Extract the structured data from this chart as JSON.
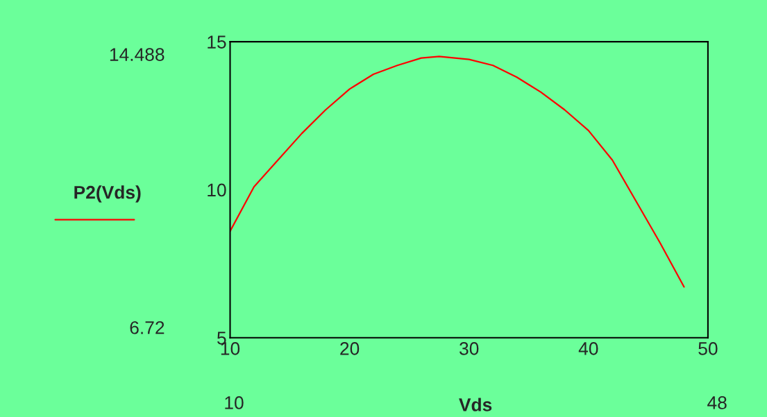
{
  "chart_data": {
    "type": "line",
    "xlabel": "Vds",
    "x": [
      10,
      12,
      14,
      16,
      18,
      20,
      22,
      24,
      26,
      27.5,
      30,
      32,
      34,
      36,
      38,
      40,
      42,
      44,
      46,
      48
    ],
    "series": [
      {
        "name": "P2(Vds)",
        "color": "#ff0000",
        "values": [
          8.6,
          10.1,
          11.0,
          11.9,
          12.7,
          13.4,
          13.9,
          14.2,
          14.45,
          14.5,
          14.4,
          14.2,
          13.8,
          13.3,
          12.7,
          12.0,
          11.0,
          9.6,
          8.2,
          6.72
        ]
      }
    ],
    "xlim": [
      10,
      50
    ],
    "ylim": [
      5,
      15
    ],
    "xticks": [
      10,
      20,
      30,
      40,
      50
    ],
    "yticks": [
      5,
      10,
      15
    ],
    "grid": false,
    "legend": "left",
    "marker": "none",
    "line_style": "solid",
    "annotations": [
      "14.488",
      "6.72",
      "10",
      "48"
    ]
  }
}
